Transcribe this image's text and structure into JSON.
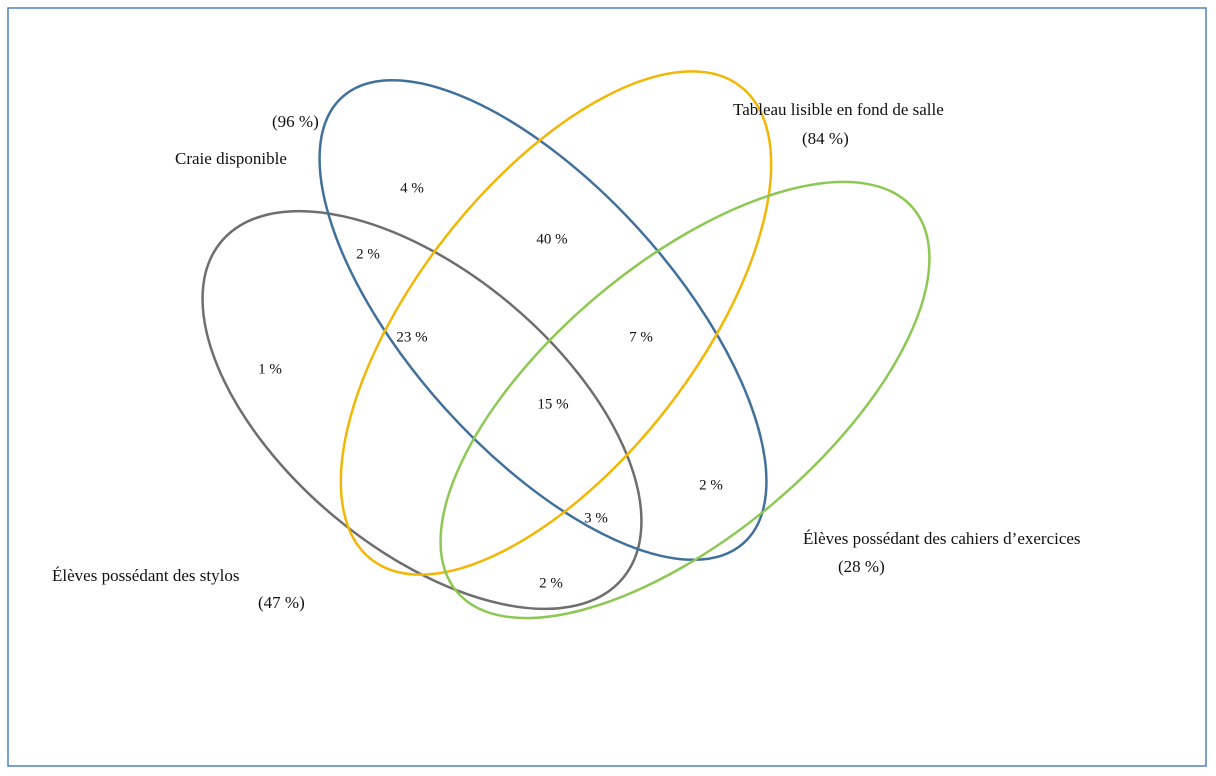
{
  "sets": [
    {
      "name": "Craie disponible",
      "share": "(96 %)",
      "color": "#41709b"
    },
    {
      "name": "Tableau lisible en fond de salle",
      "share": "(84 %)",
      "color": "#f2b705"
    },
    {
      "name": "Élèves possédant des cahiers d’exercices",
      "share": "(28 %)",
      "color": "#8dc853"
    },
    {
      "name": "Élèves possédant des stylos",
      "share": "(47 %)",
      "color": "#6e6e6e"
    }
  ],
  "regions": [
    "4 %",
    "2 %",
    "40 %",
    "23 %",
    "7 %",
    "1 %",
    "15 %",
    "2 %",
    "3 %",
    "2 %"
  ]
}
